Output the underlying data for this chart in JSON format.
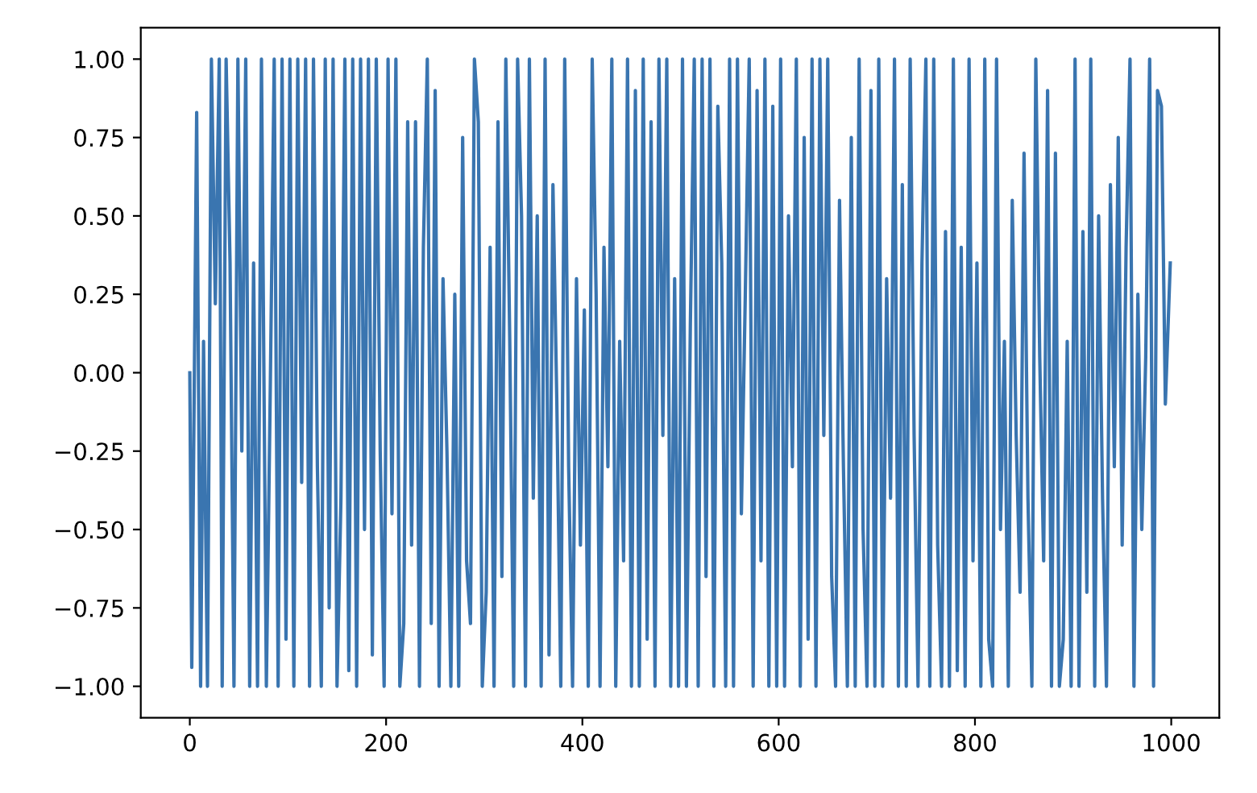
{
  "chart_data": {
    "type": "line",
    "xlim": [
      -49.95,
      1048.95
    ],
    "ylim": [
      -1.1,
      1.1
    ],
    "xticks": [
      0,
      200,
      400,
      600,
      800,
      1000
    ],
    "yticks": [
      {
        "value": -1,
        "label": "−1.00"
      },
      {
        "value": -0.75,
        "label": "−0.75"
      },
      {
        "value": -0.5,
        "label": "−0.50"
      },
      {
        "value": -0.25,
        "label": "−0.25"
      },
      {
        "value": 0,
        "label": "0.00"
      },
      {
        "value": 0.25,
        "label": "0.25"
      },
      {
        "value": 0.5,
        "label": "0.50"
      },
      {
        "value": 0.75,
        "label": "0.75"
      },
      {
        "value": 1,
        "label": "1.00"
      }
    ],
    "grid": false,
    "marker": "none",
    "line_style": "solid",
    "series": [
      {
        "color": "#3a75b0",
        "x": [
          0,
          2,
          7,
          11,
          14,
          18,
          22,
          26,
          30,
          33,
          37,
          41,
          45,
          49,
          53,
          57,
          61,
          65,
          69,
          73,
          78,
          82,
          86,
          90,
          94,
          98,
          102,
          106,
          110,
          114,
          118,
          122,
          126,
          130,
          134,
          138,
          142,
          146,
          150,
          154,
          158,
          162,
          166,
          170,
          174,
          178,
          182,
          186,
          190,
          194,
          198,
          202,
          206,
          210,
          214,
          218,
          222,
          226,
          230,
          234,
          238,
          242,
          246,
          250,
          254,
          258,
          262,
          266,
          270,
          274,
          278,
          282,
          286,
          290,
          294,
          298,
          302,
          306,
          310,
          314,
          318,
          322,
          326,
          330,
          334,
          338,
          342,
          346,
          350,
          354,
          358,
          362,
          366,
          370,
          374,
          378,
          382,
          386,
          390,
          394,
          398,
          402,
          406,
          410,
          414,
          418,
          422,
          426,
          430,
          434,
          438,
          442,
          446,
          450,
          454,
          458,
          462,
          466,
          470,
          474,
          478,
          482,
          486,
          490,
          494,
          498,
          502,
          506,
          510,
          514,
          518,
          522,
          526,
          530,
          534,
          538,
          542,
          546,
          550,
          554,
          558,
          562,
          566,
          570,
          574,
          578,
          582,
          586,
          590,
          594,
          598,
          602,
          606,
          610,
          614,
          618,
          622,
          626,
          630,
          634,
          638,
          642,
          646,
          650,
          654,
          658,
          662,
          666,
          670,
          674,
          678,
          682,
          686,
          690,
          694,
          698,
          702,
          706,
          710,
          714,
          718,
          722,
          726,
          730,
          734,
          738,
          742,
          746,
          750,
          754,
          758,
          762,
          766,
          770,
          774,
          778,
          782,
          786,
          790,
          794,
          798,
          802,
          806,
          810,
          814,
          818,
          822,
          826,
          830,
          834,
          838,
          842,
          846,
          850,
          854,
          858,
          862,
          866,
          870,
          874,
          878,
          882,
          886,
          890,
          894,
          898,
          902,
          906,
          910,
          914,
          918,
          922,
          926,
          930,
          934,
          938,
          942,
          946,
          950,
          954,
          958,
          962,
          966,
          970,
          974,
          978,
          982,
          986,
          990,
          994,
          999
        ],
        "values": [
          0,
          -0.94,
          0.83,
          -1,
          0.1,
          -1,
          1,
          0.22,
          1,
          -1,
          1,
          0.35,
          -1,
          1,
          -0.25,
          1,
          -1,
          0.35,
          -1,
          1,
          -1,
          -0.05,
          1,
          -1,
          1,
          -0.85,
          1,
          -1,
          1,
          -0.35,
          1,
          -1,
          1,
          -0.3,
          -1,
          1,
          -0.75,
          1,
          -1,
          -0.4,
          1,
          -0.95,
          1,
          -1,
          1,
          -0.5,
          1,
          -0.9,
          1,
          -0.25,
          -1,
          1,
          -0.45,
          1,
          -1,
          -0.8,
          0.8,
          -0.55,
          0.8,
          -1,
          0.4,
          1,
          -0.8,
          0.9,
          -1,
          0.3,
          -0.25,
          -1,
          0.25,
          -1,
          0.75,
          -0.6,
          -0.8,
          1,
          0.8,
          -1,
          -0.7,
          0.4,
          -1,
          0.8,
          -0.65,
          1,
          0.1,
          -1,
          1,
          0.5,
          -1,
          1,
          -0.4,
          0.5,
          -1,
          1,
          -0.9,
          0.6,
          -0.1,
          -1,
          1,
          -0.3,
          -1,
          0.3,
          -0.55,
          0.2,
          -1,
          1,
          0.25,
          -1,
          0.4,
          -0.3,
          1,
          -1,
          0.1,
          -0.6,
          1,
          -1,
          0.9,
          -1,
          1,
          -0.85,
          0.8,
          -1,
          1,
          -0.2,
          1,
          -1,
          0.3,
          -1,
          1,
          -1,
          0.15,
          1,
          -1,
          1,
          -0.65,
          1,
          -1,
          0.85,
          0.35,
          -1,
          1,
          -1,
          1,
          -0.45,
          0.25,
          1,
          -1,
          0.9,
          -0.6,
          1,
          -1,
          0.85,
          -1,
          1,
          -1,
          0.5,
          -0.3,
          1,
          -1,
          0.75,
          -0.85,
          1,
          -1,
          1,
          -0.2,
          1,
          -0.65,
          -1,
          0.55,
          -0.3,
          -1,
          0.75,
          -1,
          1,
          -0.5,
          -1,
          0.9,
          -1,
          1,
          -1,
          0.3,
          -0.4,
          1,
          -1,
          0.6,
          -1,
          1,
          -0.2,
          -1,
          0.35,
          1,
          -1,
          1,
          -0.55,
          -1,
          0.45,
          -1,
          1,
          -0.95,
          0.4,
          -1,
          1,
          -0.6,
          0.35,
          -1,
          1,
          -0.85,
          -1,
          1,
          -0.5,
          0.1,
          -1,
          0.55,
          -0.2,
          -0.7,
          0.7,
          -0.4,
          -1,
          1,
          0.05,
          -0.6,
          0.9,
          -1,
          0.7,
          -1,
          -0.85,
          0.1,
          -1,
          1,
          -1,
          0.45,
          -0.7,
          1,
          -1,
          0.5,
          -0.4,
          -1,
          0.6,
          -0.3,
          0.75,
          -0.55,
          0.4,
          1,
          -1,
          0.25,
          -0.5,
          0.05,
          1,
          -1,
          0.9,
          0.85,
          -0.1,
          0.35
        ]
      }
    ]
  }
}
